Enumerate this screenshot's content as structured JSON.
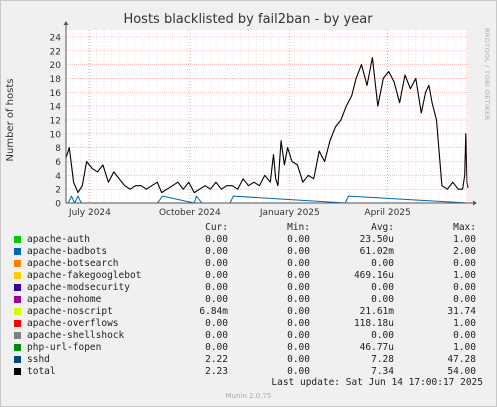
{
  "chart_data": {
    "type": "line",
    "title": "Hosts blacklisted by fail2ban - by year",
    "ylabel": "Number of hosts",
    "xlabel": "",
    "ylim": [
      0,
      25
    ],
    "yticks": [
      0,
      2,
      4,
      6,
      8,
      10,
      12,
      14,
      16,
      18,
      20,
      22,
      24
    ],
    "x_range": [
      "2024-06-09",
      "2025-06-14"
    ],
    "xticks": [
      {
        "date": "2024-07-01",
        "label": "July 2024"
      },
      {
        "date": "2024-10-01",
        "label": "October 2024"
      },
      {
        "date": "2025-01-01",
        "label": "January 2025"
      },
      {
        "date": "2025-04-01",
        "label": "April 2025"
      }
    ],
    "grid": true,
    "series": [
      {
        "name": "total",
        "color": "#000000",
        "x": [
          "2024-06-09",
          "2024-06-12",
          "2024-06-16",
          "2024-06-20",
          "2024-06-24",
          "2024-06-28",
          "2024-07-03",
          "2024-07-08",
          "2024-07-13",
          "2024-07-18",
          "2024-07-23",
          "2024-07-28",
          "2024-08-02",
          "2024-08-07",
          "2024-08-12",
          "2024-08-17",
          "2024-08-22",
          "2024-08-27",
          "2024-09-01",
          "2024-09-05",
          "2024-09-10",
          "2024-09-15",
          "2024-09-20",
          "2024-09-25",
          "2024-09-30",
          "2024-10-05",
          "2024-10-10",
          "2024-10-15",
          "2024-10-20",
          "2024-10-25",
          "2024-10-30",
          "2024-11-04",
          "2024-11-09",
          "2024-11-14",
          "2024-11-19",
          "2024-11-24",
          "2024-11-29",
          "2024-12-04",
          "2024-12-09",
          "2024-12-14",
          "2024-12-17",
          "2024-12-19",
          "2024-12-21",
          "2024-12-24",
          "2024-12-27",
          "2024-12-30",
          "2025-01-03",
          "2025-01-08",
          "2025-01-13",
          "2025-01-18",
          "2025-01-23",
          "2025-01-28",
          "2025-02-02",
          "2025-02-07",
          "2025-02-12",
          "2025-02-17",
          "2025-02-22",
          "2025-02-27",
          "2025-03-03",
          "2025-03-08",
          "2025-03-13",
          "2025-03-18",
          "2025-03-23",
          "2025-03-28",
          "2025-04-02",
          "2025-04-07",
          "2025-04-12",
          "2025-04-17",
          "2025-04-22",
          "2025-04-27",
          "2025-05-02",
          "2025-05-06",
          "2025-05-09",
          "2025-05-12",
          "2025-05-16",
          "2025-05-21",
          "2025-05-26",
          "2025-05-31",
          "2025-06-05",
          "2025-06-09",
          "2025-06-11",
          "2025-06-12",
          "2025-06-13",
          "2025-06-14"
        ],
        "y": [
          6.5,
          8.0,
          3.0,
          1.5,
          2.5,
          6.0,
          5.0,
          4.5,
          5.5,
          3.0,
          4.5,
          3.5,
          2.5,
          2.0,
          2.5,
          2.5,
          2.0,
          2.5,
          3.0,
          1.5,
          2.0,
          2.5,
          3.0,
          2.0,
          3.0,
          1.5,
          2.0,
          2.5,
          2.0,
          3.0,
          2.0,
          2.5,
          2.5,
          2.0,
          3.5,
          2.5,
          3.0,
          2.5,
          4.0,
          3.0,
          7.0,
          3.5,
          2.5,
          9.0,
          5.5,
          8.0,
          6.0,
          5.5,
          3.0,
          4.0,
          3.5,
          7.5,
          6.0,
          9.0,
          11.0,
          12.0,
          14.0,
          15.5,
          18.0,
          20.0,
          17.0,
          21.0,
          14.0,
          18.0,
          19.0,
          17.5,
          14.5,
          18.5,
          16.5,
          18.0,
          13.0,
          16.0,
          17.0,
          14.5,
          12.0,
          2.5,
          2.0,
          3.0,
          2.0,
          2.0,
          4.0,
          10.0,
          3.0,
          2.2
        ]
      },
      {
        "name": "sshd",
        "color": "#0066b3",
        "x": [
          "2024-06-09",
          "2024-06-11",
          "2024-06-14",
          "2024-06-17",
          "2024-06-20",
          "2024-06-23",
          "2024-07-30",
          "2024-09-01",
          "2024-09-06",
          "2024-10-05",
          "2024-10-07",
          "2024-10-12",
          "2024-11-07",
          "2024-11-10",
          "2025-02-21",
          "2025-02-24",
          "2025-06-14"
        ],
        "y": [
          0,
          0,
          1,
          0,
          1,
          0,
          0,
          0,
          1,
          0,
          1,
          0,
          0,
          1,
          0,
          1,
          0
        ]
      }
    ]
  },
  "watermark": "RRDTOOL / TOBI OETIKER",
  "legend": {
    "headers": {
      "cur": "Cur:",
      "min": "Min:",
      "avg": "Avg:",
      "max": "Max:"
    },
    "rows": [
      {
        "name": "apache-auth",
        "color": "#00cc00",
        "cur": "0.00",
        "min": "0.00",
        "avg": "23.50u",
        "max": "1.00"
      },
      {
        "name": "apache-badbots",
        "color": "#0066b3",
        "cur": "0.00",
        "min": "0.00",
        "avg": "61.02m",
        "max": "2.00"
      },
      {
        "name": "apache-botsearch",
        "color": "#ff8000",
        "cur": "0.00",
        "min": "0.00",
        "avg": "0.00",
        "max": "0.00"
      },
      {
        "name": "apache-fakegooglebot",
        "color": "#ffcc00",
        "cur": "0.00",
        "min": "0.00",
        "avg": "469.16u",
        "max": "1.00"
      },
      {
        "name": "apache-modsecurity",
        "color": "#330099",
        "cur": "0.00",
        "min": "0.00",
        "avg": "0.00",
        "max": "0.00"
      },
      {
        "name": "apache-nohome",
        "color": "#990099",
        "cur": "0.00",
        "min": "0.00",
        "avg": "0.00",
        "max": "0.00"
      },
      {
        "name": "apache-noscript",
        "color": "#ccff00",
        "cur": "6.84m",
        "min": "0.00",
        "avg": "21.61m",
        "max": "31.74"
      },
      {
        "name": "apache-overflows",
        "color": "#ff0000",
        "cur": "0.00",
        "min": "0.00",
        "avg": "118.18u",
        "max": "1.00"
      },
      {
        "name": "apache-shellshock",
        "color": "#808080",
        "cur": "0.00",
        "min": "0.00",
        "avg": "0.00",
        "max": "0.00"
      },
      {
        "name": "php-url-fopen",
        "color": "#008f00",
        "cur": "0.00",
        "min": "0.00",
        "avg": "46.77u",
        "max": "1.00"
      },
      {
        "name": "sshd",
        "color": "#00487d",
        "cur": "2.22",
        "min": "0.00",
        "avg": "7.28",
        "max": "47.28"
      },
      {
        "name": "total",
        "color": "#000000",
        "cur": "2.23",
        "min": "0.00",
        "avg": "7.34",
        "max": "54.00"
      }
    ]
  },
  "last_update": "Last update: Sat Jun 14 17:00:17 2025",
  "munin_version": "Munin 2.0.75"
}
